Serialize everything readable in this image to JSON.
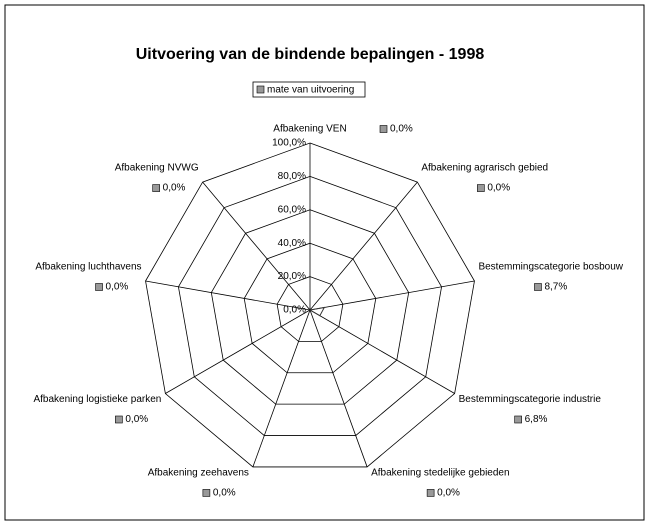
{
  "chart_data": {
    "type": "radar",
    "title": "Uitvoering van de bindende bepalingen - 1998",
    "categories": [
      "Afbakening VEN",
      "Afbakening agrarisch gebied",
      "Bestemmingscategorie bosbouw",
      "Bestemmingscategorie industrie",
      "Afbakening stedelijke gebieden",
      "Afbakening zeehavens",
      "Afbakening logistieke parken",
      "Afbakening luchthavens",
      "Afbakening NVWG"
    ],
    "series": [
      {
        "name": "mate van uitvoering",
        "color": "#999999",
        "values": [
          0,
          0,
          8.7,
          6.8,
          0,
          0,
          0,
          0,
          0
        ],
        "value_labels": [
          "0,0%",
          "0,0%",
          "8,7%",
          "6,8%",
          "0,0%",
          "0,0%",
          "0,0%",
          "0,0%",
          "0,0%"
        ]
      }
    ],
    "ylim": [
      0,
      100
    ],
    "yticks": [
      {
        "value": 0,
        "label": "0,0%"
      },
      {
        "value": 20,
        "label": "20,0%"
      },
      {
        "value": 40,
        "label": "40,0%"
      },
      {
        "value": 60,
        "label": "60,0%"
      },
      {
        "value": 80,
        "label": "80,0%"
      },
      {
        "value": 100,
        "label": "100,0%"
      }
    ],
    "legend": "top"
  }
}
